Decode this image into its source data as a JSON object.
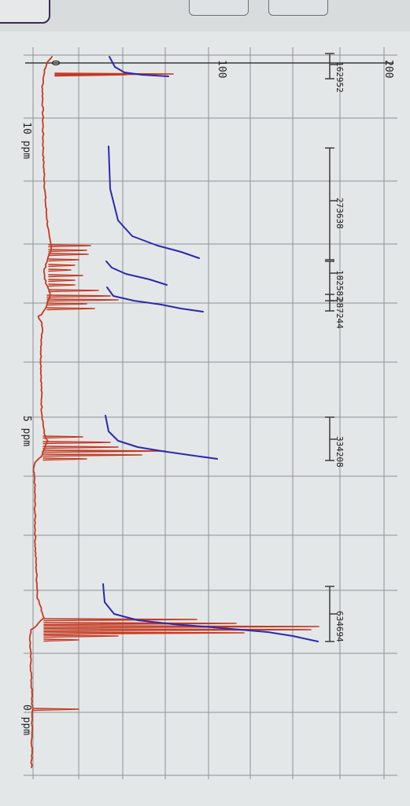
{
  "chart_data": {
    "type": "line",
    "x_axis_labels": [
      "10 ppm",
      "5 ppm",
      "0 ppm"
    ],
    "y_axis_labels": [
      "0",
      "100",
      "200"
    ],
    "integration_labels": [
      "162952",
      "273638",
      "182582",
      "287244",
      "334208",
      "634694"
    ],
    "colors": {
      "spectrum": "#c43a22",
      "integral": "#2a2ab0",
      "grid": "#8d9196",
      "axis": "#3a3a3a",
      "text": "#1f1f1f",
      "background": "#e4e7e8",
      "frame": "#3b2a52"
    },
    "grid": true
  }
}
